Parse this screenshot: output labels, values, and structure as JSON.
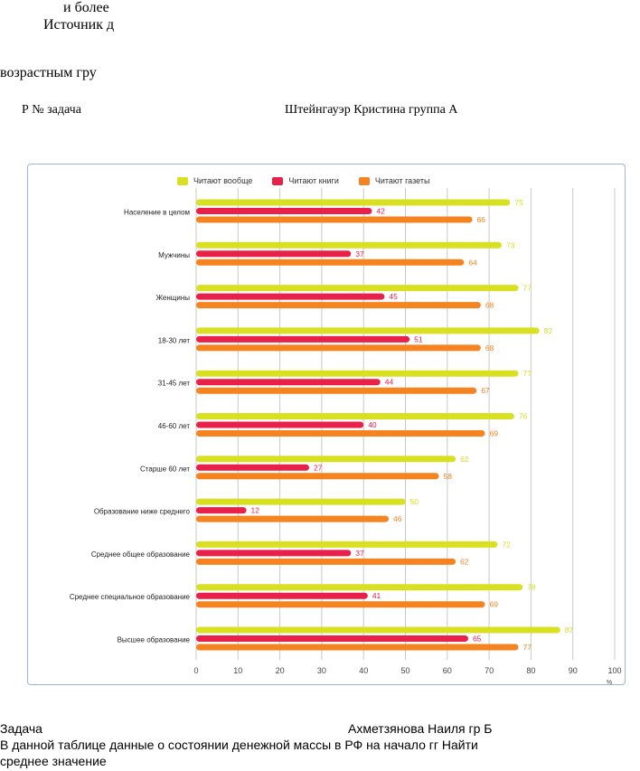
{
  "top_text": {
    "line1": "и более",
    "line2": "Источник д",
    "line3": "возрастным гру",
    "task_prefix": "Р №   задача",
    "author": "Штейнгауэр Кристина  группа        А"
  },
  "bottom_text": {
    "task_label": "Задача",
    "author2": "Ахметзянова Наиля  гр          Б",
    "description": "В данной таблице   данные о состоянии денежной массы в РФ на начало                     гг  Найти",
    "description2": "среднее значение"
  },
  "colors": {
    "general": "#d9e021",
    "books": "#e8204a",
    "newspapers": "#f5831f",
    "grid": "#c8c8c8",
    "border": "#9fb6cf"
  },
  "chart_data": {
    "type": "bar",
    "orientation": "horizontal",
    "categories": [
      "Население в целом",
      "Мужчины",
      "Женщины",
      "18-30 лет",
      "31-45 лет",
      "46-60 лет",
      "Старше 60 лет",
      "Образование ниже среднего",
      "Среднее общее образование",
      "Среднее специальное образование",
      "Высшее образование"
    ],
    "series": [
      {
        "name": "Читают вообще",
        "values": [
          75,
          73,
          77,
          82,
          77,
          76,
          62,
          50,
          72,
          78,
          87
        ]
      },
      {
        "name": "Читают книги",
        "values": [
          42,
          37,
          45,
          51,
          44,
          40,
          27,
          12,
          37,
          41,
          65
        ]
      },
      {
        "name": "Читают газеты",
        "values": [
          66,
          64,
          68,
          68,
          67,
          69,
          58,
          46,
          62,
          69,
          77
        ]
      }
    ],
    "x_ticks": [
      "0",
      "10",
      "20",
      "30",
      "40",
      "50",
      "60",
      "70",
      "80",
      "90",
      "100"
    ],
    "x_unit": "%",
    "xlim": [
      0,
      100
    ],
    "grid": true,
    "legend_position": "top"
  }
}
